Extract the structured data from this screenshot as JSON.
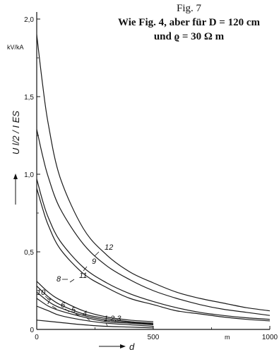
{
  "title_lines": [
    "Fig. 7",
    "Wie Fig. 4, aber für D = 120 cm",
    "und ϱ = 30 Ω m"
  ],
  "chart_data": {
    "type": "line",
    "ylabel": "U l/2 / I ES",
    "y_unit": "kV/kA",
    "xlabel": "d",
    "x_unit": "m",
    "xlim": [
      0,
      1000
    ],
    "ylim": [
      0,
      2.0
    ],
    "x_ticks": [
      "0",
      "500",
      "1000"
    ],
    "y_ticks": [
      "0",
      "0,5",
      "1,0",
      "1,5",
      "2,0"
    ],
    "grid": false,
    "series": [
      {
        "name": "12",
        "x": [
          0,
          25,
          50,
          100,
          200,
          300,
          400,
          500,
          600,
          700,
          800,
          900,
          1000
        ],
        "y": [
          1.9,
          1.58,
          1.32,
          0.98,
          0.65,
          0.48,
          0.37,
          0.3,
          0.24,
          0.2,
          0.17,
          0.14,
          0.12
        ]
      },
      {
        "name": "9",
        "x": [
          0,
          25,
          50,
          100,
          200,
          300,
          400,
          500,
          600,
          700,
          800,
          900,
          1000
        ],
        "y": [
          1.29,
          1.12,
          0.98,
          0.78,
          0.55,
          0.41,
          0.32,
          0.25,
          0.2,
          0.16,
          0.13,
          0.11,
          0.09
        ]
      },
      {
        "name": "11",
        "x": [
          0,
          25,
          50,
          100,
          200,
          300,
          400,
          500,
          600,
          700,
          800,
          900,
          1000
        ],
        "y": [
          0.97,
          0.83,
          0.72,
          0.57,
          0.4,
          0.3,
          0.23,
          0.18,
          0.14,
          0.11,
          0.09,
          0.075,
          0.065
        ]
      },
      {
        "name": "8",
        "x": [
          0,
          25,
          50,
          100,
          200,
          300,
          400,
          500,
          600,
          700,
          800,
          900,
          1000
        ],
        "y": [
          0.91,
          0.78,
          0.67,
          0.52,
          0.36,
          0.27,
          0.2,
          0.16,
          0.12,
          0.1,
          0.08,
          0.065,
          0.055
        ]
      },
      {
        "name": "10",
        "x": [
          0,
          50,
          100,
          200,
          300,
          400,
          500
        ],
        "y": [
          0.31,
          0.24,
          0.19,
          0.12,
          0.08,
          0.06,
          0.05
        ]
      },
      {
        "name": "7",
        "x": [
          0,
          50,
          100,
          200,
          300,
          400,
          500
        ],
        "y": [
          0.28,
          0.21,
          0.16,
          0.1,
          0.07,
          0.05,
          0.04
        ]
      },
      {
        "name": "6",
        "x": [
          0,
          50,
          100,
          200,
          300,
          400,
          500
        ],
        "y": [
          0.24,
          0.18,
          0.14,
          0.09,
          0.06,
          0.045,
          0.035
        ]
      },
      {
        "name": "5",
        "x": [
          0,
          50,
          100,
          200,
          300,
          400,
          500
        ],
        "y": [
          0.2,
          0.15,
          0.12,
          0.08,
          0.05,
          0.04,
          0.03
        ]
      },
      {
        "name": "4",
        "x": [
          0,
          50,
          100,
          200,
          300,
          400,
          500
        ],
        "y": [
          0.15,
          0.12,
          0.09,
          0.06,
          0.04,
          0.03,
          0.02
        ]
      },
      {
        "name": "1,2,3",
        "x": [
          0,
          100,
          200,
          300,
          400,
          500
        ],
        "y": [
          0.06,
          0.045,
          0.03,
          0.02,
          0.015,
          0.01
        ]
      }
    ]
  }
}
